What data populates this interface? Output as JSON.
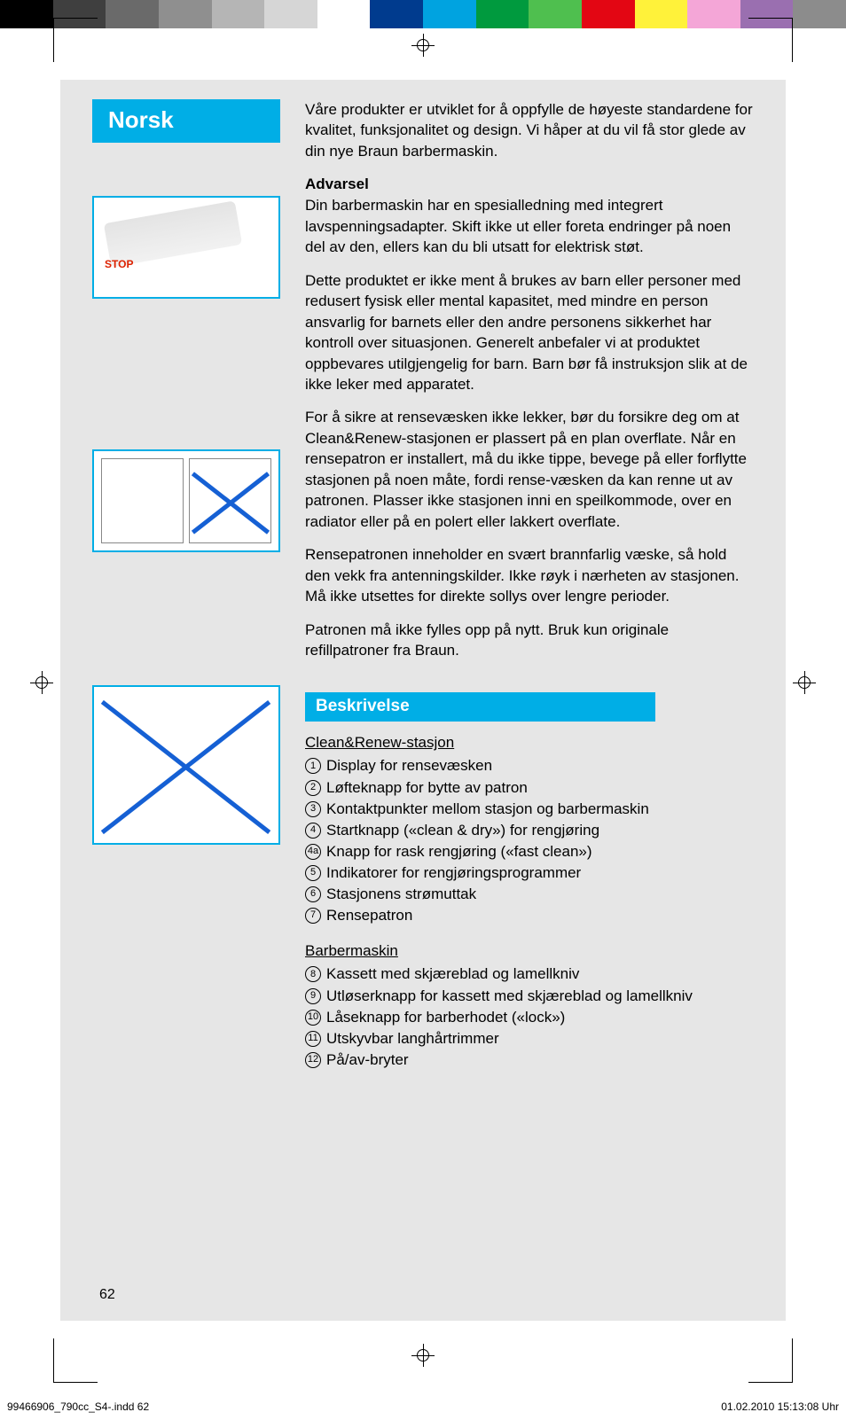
{
  "colorbar": [
    "#000000",
    "#3f3f3f",
    "#6a6a6a",
    "#8f8f8f",
    "#b5b5b5",
    "#d6d6d6",
    "#ffffff",
    "#003b8e",
    "#00a3e0",
    "#009a3e",
    "#4fbf4f",
    "#e30613",
    "#fff23a",
    "#f4a6d7",
    "#9a6fb0",
    "#8c8c8c"
  ],
  "language_badge": "Norsk",
  "illus1_label": "STOP",
  "intro": "Våre produkter er utviklet for å oppfylle de høyeste standardene for kvalitet, funksjonalitet og design. Vi håper at du vil få stor glede av din nye Braun barbermaskin.",
  "warning_title": "Advarsel",
  "para1": "Din barbermaskin har en spesialledning med integrert lavspenningsadapter. Skift ikke ut eller foreta endringer på noen del av den, ellers kan du bli utsatt for elektrisk støt.",
  "para2": "Dette produktet er ikke ment å brukes av barn eller personer med redusert fysisk eller mental kapasitet, med mindre en person ansvarlig for barnets eller den andre personens sikkerhet har kontroll over situasjonen. Generelt anbefaler vi at produktet oppbevares utilgjengelig for barn. Barn bør få instruksjon slik at de ikke leker med apparatet.",
  "para3": "For å sikre at rensevæsken ikke lekker, bør du forsikre deg om at Clean&Renew-stasjonen er plassert på en plan overflate. Når en rensepatron er installert, må du ikke tippe, bevege på eller forflytte stasjonen på noen måte, fordi rense-væsken da kan renne ut av patronen. Plasser ikke stasjonen inni en speilkommode, over en radiator eller på en polert eller lakkert overflate.",
  "para4": "Rensepatronen inneholder en svært brannfarlig væske, så hold den vekk fra antenningskilder. Ikke røyk i nærheten av stasjonen. Må ikke utsettes for direkte sollys over lengre perioder.",
  "para5": "Patronen må ikke fylles opp på nytt. Bruk kun originale refillpatroner fra Braun.",
  "section_title": "Beskrivelse",
  "sub1": "Clean&Renew-stasjon",
  "list1": [
    {
      "n": "1",
      "t": "Display for rensevæsken"
    },
    {
      "n": "2",
      "t": "Løfteknapp for bytte av patron"
    },
    {
      "n": "3",
      "t": "Kontaktpunkter mellom stasjon og barbermaskin"
    },
    {
      "n": "4",
      "t": "Startknapp («clean & dry») for rengjøring"
    },
    {
      "n": "4a",
      "t": "Knapp for rask rengjøring («fast clean»)"
    },
    {
      "n": "5",
      "t": "Indikatorer for rengjøringsprogrammer"
    },
    {
      "n": "6",
      "t": "Stasjonens strømuttak"
    },
    {
      "n": "7",
      "t": "Rensepatron"
    }
  ],
  "sub2": "Barbermaskin",
  "list2": [
    {
      "n": "8",
      "t": "Kassett med skjæreblad og lamellkniv"
    },
    {
      "n": "9",
      "t": "Utløserknapp for kassett med skjæreblad og lamellkniv"
    },
    {
      "n": "10",
      "t": "Låseknapp for barberhodet («lock»)"
    },
    {
      "n": "11",
      "t": "Utskyvbar langhårtrimmer"
    },
    {
      "n": "12",
      "t": "På/av-bryter"
    }
  ],
  "page_number": "62",
  "footer_file": "99466906_790cc_S4-.indd   62",
  "footer_date": "01.02.2010   15:13:08 Uhr",
  "colors": {
    "accent": "#00aee6",
    "page_bg": "#e6e6e6",
    "cross": "#1560d4",
    "stop": "#d20000"
  }
}
